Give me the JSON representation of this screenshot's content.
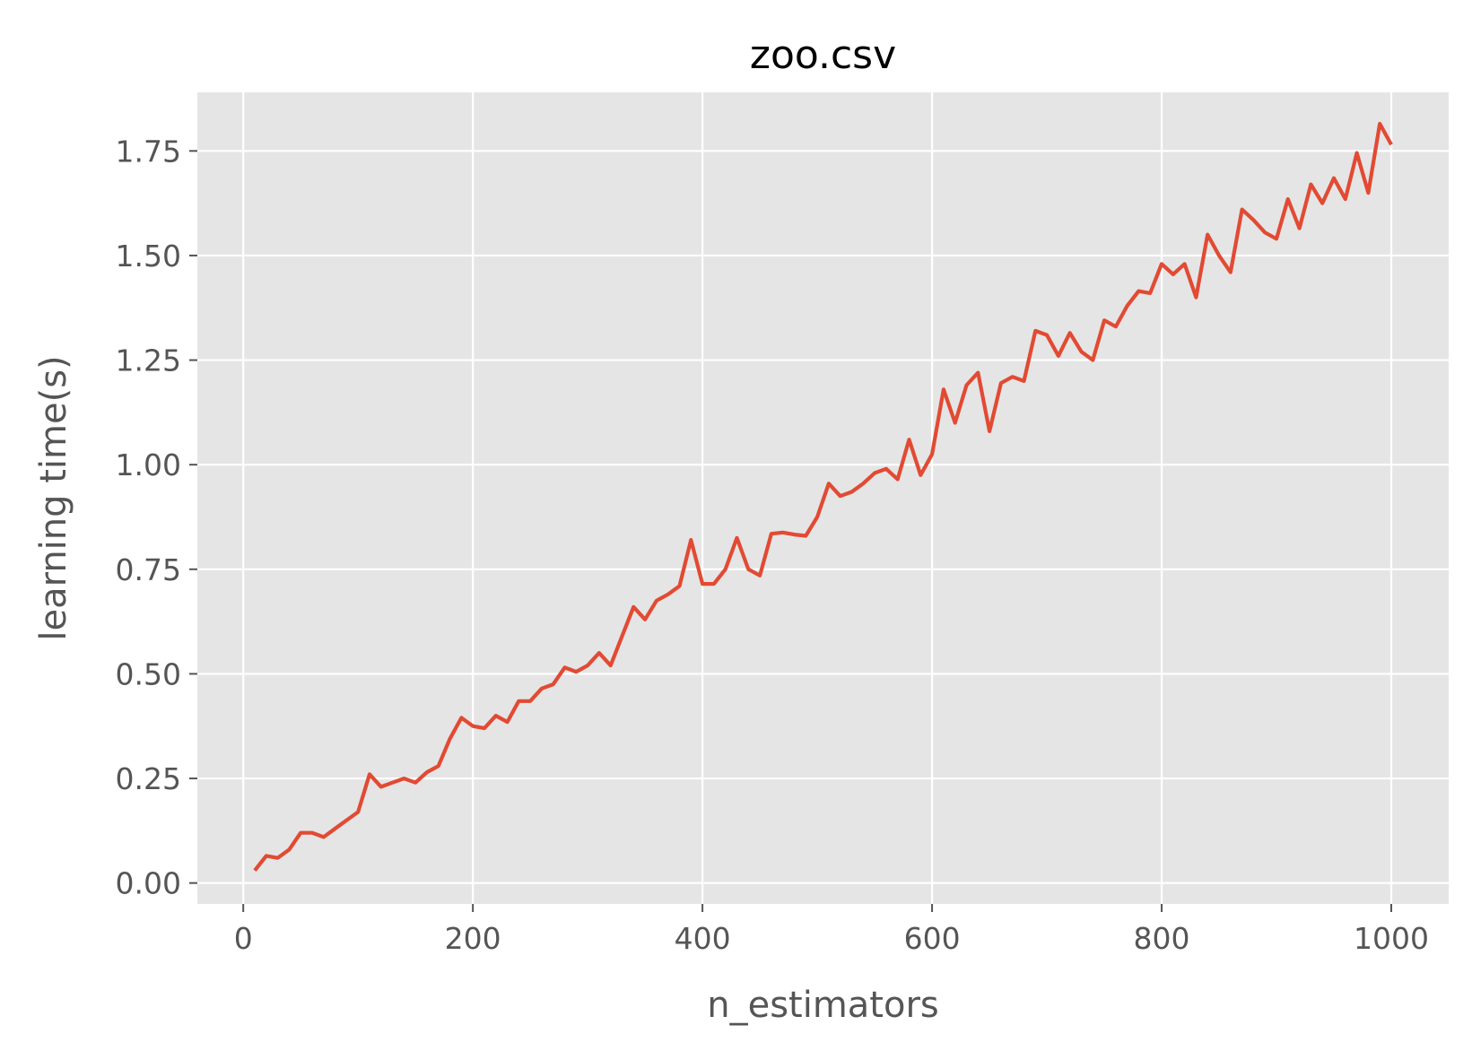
{
  "chart_data": {
    "type": "line",
    "title": "zoo.csv",
    "xlabel": "n_estimators",
    "ylabel": "learning time(s)",
    "xlim": [
      -40,
      1050
    ],
    "ylim": [
      -0.05,
      1.89
    ],
    "xticks": [
      0,
      200,
      400,
      600,
      800,
      1000
    ],
    "xtick_labels": [
      "0",
      "200",
      "400",
      "600",
      "800",
      "1000"
    ],
    "yticks": [
      0.0,
      0.25,
      0.5,
      0.75,
      1.0,
      1.25,
      1.5,
      1.75
    ],
    "ytick_labels": [
      "0.00",
      "0.25",
      "0.50",
      "0.75",
      "1.00",
      "1.25",
      "1.50",
      "1.75"
    ],
    "grid": true,
    "colors": {
      "background": "#e5e5e5",
      "grid": "#ffffff",
      "line": "#e24a33"
    },
    "series": [
      {
        "x": [
          10,
          20,
          30,
          40,
          50,
          60,
          70,
          80,
          90,
          100,
          110,
          120,
          130,
          140,
          150,
          160,
          170,
          180,
          190,
          200,
          210,
          220,
          230,
          240,
          250,
          260,
          270,
          280,
          290,
          300,
          310,
          320,
          330,
          340,
          350,
          360,
          370,
          380,
          390,
          400,
          410,
          420,
          430,
          440,
          450,
          460,
          470,
          480,
          490,
          500,
          510,
          520,
          530,
          540,
          550,
          560,
          570,
          580,
          590,
          600,
          610,
          620,
          630,
          640,
          650,
          660,
          670,
          680,
          690,
          700,
          710,
          720,
          730,
          740,
          750,
          760,
          770,
          780,
          790,
          800,
          810,
          820,
          830,
          840,
          850,
          860,
          870,
          880,
          890,
          900,
          910,
          920,
          930,
          940,
          950,
          960,
          970,
          980,
          990,
          1000
        ],
        "y": [
          0.03,
          0.065,
          0.06,
          0.08,
          0.12,
          0.12,
          0.11,
          0.13,
          0.15,
          0.17,
          0.26,
          0.23,
          0.24,
          0.25,
          0.24,
          0.265,
          0.28,
          0.345,
          0.395,
          0.375,
          0.37,
          0.4,
          0.385,
          0.435,
          0.435,
          0.465,
          0.475,
          0.515,
          0.505,
          0.52,
          0.55,
          0.52,
          0.59,
          0.66,
          0.63,
          0.675,
          0.69,
          0.71,
          0.82,
          0.715,
          0.715,
          0.75,
          0.825,
          0.75,
          0.735,
          0.835,
          0.838,
          0.833,
          0.83,
          0.875,
          0.955,
          0.925,
          0.935,
          0.955,
          0.98,
          0.99,
          0.965,
          1.06,
          0.975,
          1.025,
          1.18,
          1.1,
          1.19,
          1.22,
          1.08,
          1.195,
          1.21,
          1.2,
          1.32,
          1.31,
          1.26,
          1.315,
          1.27,
          1.25,
          1.345,
          1.33,
          1.38,
          1.415,
          1.41,
          1.48,
          1.455,
          1.48,
          1.4,
          1.55,
          1.5,
          1.46,
          1.61,
          1.585,
          1.555,
          1.54,
          1.635,
          1.565,
          1.67,
          1.625,
          1.685,
          1.635,
          1.745,
          1.65,
          1.815,
          1.765
        ]
      }
    ]
  }
}
